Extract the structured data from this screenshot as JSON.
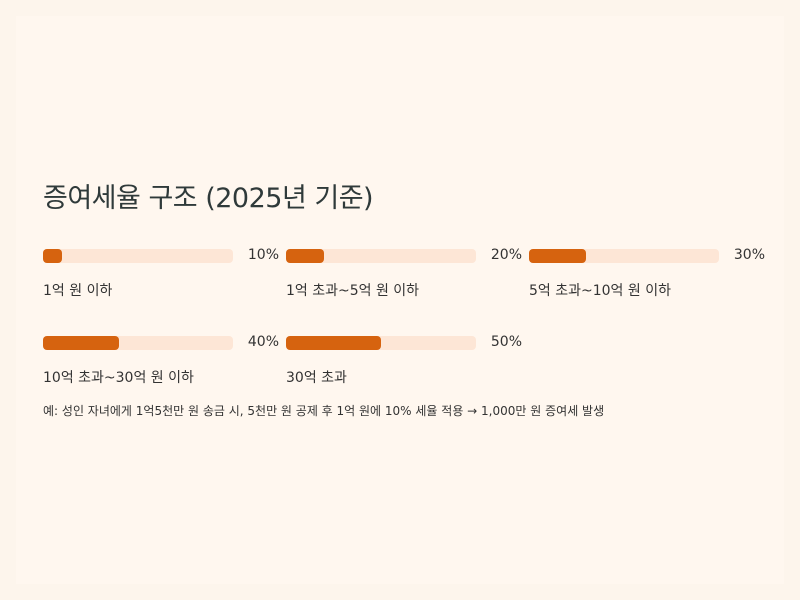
{
  "chart_data": {
    "type": "bar",
    "title": "증여세율 구조 (2025년 기준)",
    "categories": [
      "1억 원 이하",
      "1억 초과~5억 원 이하",
      "5억 초과~10억 원 이하",
      "10억 초과~30억 원 이하",
      "30억 초과"
    ],
    "values": [
      10,
      20,
      30,
      40,
      50
    ],
    "value_labels": [
      "10%",
      "20%",
      "30%",
      "40%",
      "50%"
    ],
    "xlim": [
      0,
      100
    ],
    "color": "#d6630f",
    "track_color": "#fde6d6",
    "note": "예: 성인 자녀에게 1억5천만 원 송금 시, 5천만 원 공제 후 1억 원에 10% 세율 적용 → 1,000만 원 증여세 발생"
  }
}
